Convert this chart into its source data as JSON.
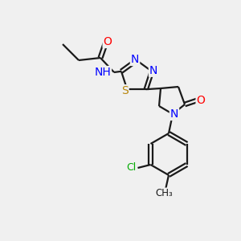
{
  "bg_color": "#f0f0f0",
  "bond_color": "#1a1a1a",
  "atom_colors": {
    "N": "#0000ff",
    "O": "#ff0000",
    "S": "#b8860b",
    "Cl": "#00aa00",
    "H": "#888888",
    "C": "#1a1a1a"
  },
  "font_size_atom": 10
}
